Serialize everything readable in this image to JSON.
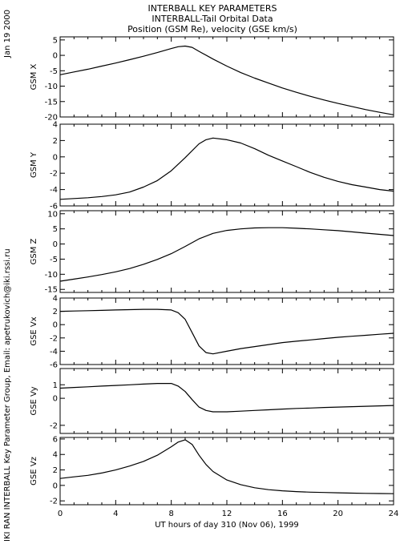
{
  "header": {
    "title_line1": "INTERBALL KEY PARAMETERS",
    "title_line2": "INTERBALL-Tail Orbital Data",
    "title_line3": "Position (GSM Re), velocity (GSE km/s)",
    "date_stamp": "Jan 19 2000",
    "credit": "IKI RAN INTERBALL Key Parameter Group, Email: apetrukovich@iki.rssi.ru"
  },
  "x_axis": {
    "label": "UT hours of day 310 (Nov 06), 1999",
    "range": [
      0,
      24
    ],
    "ticks": [
      0,
      4,
      8,
      12,
      16,
      20,
      24
    ]
  },
  "chart_data": [
    {
      "type": "line",
      "ylabel": "GSM X",
      "ylim": [
        -20,
        6
      ],
      "yticks": [
        5,
        0,
        -5,
        -10,
        -15,
        -20
      ],
      "series": [
        {
          "x": [
            0,
            1,
            2,
            3,
            4,
            5,
            6,
            7,
            8,
            8.5,
            9,
            9.5,
            10,
            11,
            12,
            13,
            14,
            15,
            16,
            17,
            18,
            19,
            20,
            21,
            22,
            23,
            24
          ],
          "values": [
            -6.3,
            -5.4,
            -4.5,
            -3.5,
            -2.5,
            -1.4,
            -0.3,
            0.9,
            2.2,
            2.8,
            3.0,
            2.6,
            1.3,
            -1.2,
            -3.5,
            -5.6,
            -7.4,
            -9.0,
            -10.6,
            -12.0,
            -13.3,
            -14.5,
            -15.6,
            -16.6,
            -17.6,
            -18.5,
            -19.3
          ]
        }
      ]
    },
    {
      "type": "line",
      "ylabel": "GSM Y",
      "ylim": [
        -6,
        4
      ],
      "yticks": [
        4,
        2,
        0,
        -2,
        -4,
        -6
      ],
      "series": [
        {
          "x": [
            0,
            1,
            2,
            3,
            4,
            5,
            6,
            7,
            8,
            9,
            10,
            10.5,
            11,
            12,
            13,
            14,
            15,
            16,
            17,
            18,
            19,
            20,
            21,
            22,
            23,
            24
          ],
          "values": [
            -5.2,
            -5.1,
            -5.0,
            -4.85,
            -4.65,
            -4.3,
            -3.7,
            -2.9,
            -1.7,
            -0.1,
            1.6,
            2.1,
            2.3,
            2.1,
            1.7,
            1.0,
            0.2,
            -0.5,
            -1.2,
            -1.9,
            -2.5,
            -3.0,
            -3.4,
            -3.7,
            -4.0,
            -4.2
          ]
        }
      ]
    },
    {
      "type": "line",
      "ylabel": "GSM Z",
      "ylim": [
        -16,
        11
      ],
      "yticks": [
        10,
        5,
        0,
        -5,
        -10,
        -15
      ],
      "series": [
        {
          "x": [
            0,
            1,
            2,
            3,
            4,
            5,
            6,
            7,
            8,
            9,
            10,
            11,
            12,
            13,
            14,
            15,
            16,
            17,
            18,
            19,
            20,
            21,
            22,
            23,
            24
          ],
          "values": [
            -12.3,
            -11.6,
            -10.9,
            -10.1,
            -9.2,
            -8.1,
            -6.7,
            -5.1,
            -3.2,
            -0.8,
            1.7,
            3.5,
            4.5,
            5.0,
            5.3,
            5.4,
            5.4,
            5.2,
            5.0,
            4.7,
            4.4,
            4.0,
            3.6,
            3.2,
            2.8
          ]
        }
      ]
    },
    {
      "type": "line",
      "ylabel": "GSE Vx",
      "ylim": [
        -6,
        4
      ],
      "yticks": [
        4,
        2,
        0,
        -2,
        -4,
        -6
      ],
      "series": [
        {
          "x": [
            0,
            1,
            2,
            3,
            4,
            5,
            6,
            7,
            8,
            8.5,
            9,
            9.5,
            10,
            10.5,
            11,
            12,
            13,
            14,
            15,
            16,
            17,
            18,
            19,
            20,
            21,
            22,
            23,
            24
          ],
          "values": [
            2.0,
            2.05,
            2.1,
            2.15,
            2.2,
            2.25,
            2.3,
            2.3,
            2.2,
            1.8,
            0.8,
            -1.2,
            -3.2,
            -4.2,
            -4.4,
            -4.0,
            -3.6,
            -3.3,
            -3.0,
            -2.7,
            -2.5,
            -2.3,
            -2.1,
            -1.9,
            -1.75,
            -1.6,
            -1.45,
            -1.3
          ]
        }
      ]
    },
    {
      "type": "line",
      "ylabel": "GSE Vy",
      "ylim": [
        -2.6,
        2.2
      ],
      "yticks": [
        1,
        0,
        -2
      ],
      "series": [
        {
          "x": [
            0,
            1,
            2,
            3,
            4,
            5,
            6,
            7,
            8,
            8.5,
            9,
            9.5,
            10,
            10.5,
            11,
            12,
            13,
            14,
            15,
            16,
            17,
            18,
            19,
            20,
            21,
            22,
            23,
            24
          ],
          "values": [
            0.75,
            0.8,
            0.85,
            0.9,
            0.95,
            1.0,
            1.05,
            1.1,
            1.1,
            0.9,
            0.5,
            -0.1,
            -0.65,
            -0.9,
            -1.0,
            -1.0,
            -0.95,
            -0.9,
            -0.85,
            -0.8,
            -0.75,
            -0.72,
            -0.68,
            -0.65,
            -0.62,
            -0.59,
            -0.56,
            -0.53
          ]
        }
      ]
    },
    {
      "type": "line",
      "ylabel": "GSE Vz",
      "ylim": [
        -2.5,
        6.2
      ],
      "yticks": [
        6,
        4,
        2,
        0,
        -2
      ],
      "series": [
        {
          "x": [
            0,
            1,
            2,
            3,
            4,
            5,
            6,
            7,
            8,
            8.5,
            9,
            9.5,
            10,
            10.5,
            11,
            12,
            13,
            14,
            15,
            16,
            17,
            18,
            19,
            20,
            21,
            22,
            23,
            24
          ],
          "values": [
            0.9,
            1.1,
            1.3,
            1.6,
            2.0,
            2.5,
            3.1,
            3.9,
            5.0,
            5.6,
            5.9,
            5.3,
            3.9,
            2.7,
            1.8,
            0.7,
            0.1,
            -0.3,
            -0.55,
            -0.7,
            -0.8,
            -0.87,
            -0.92,
            -0.96,
            -1.0,
            -1.03,
            -1.05,
            -1.07
          ]
        }
      ]
    }
  ]
}
